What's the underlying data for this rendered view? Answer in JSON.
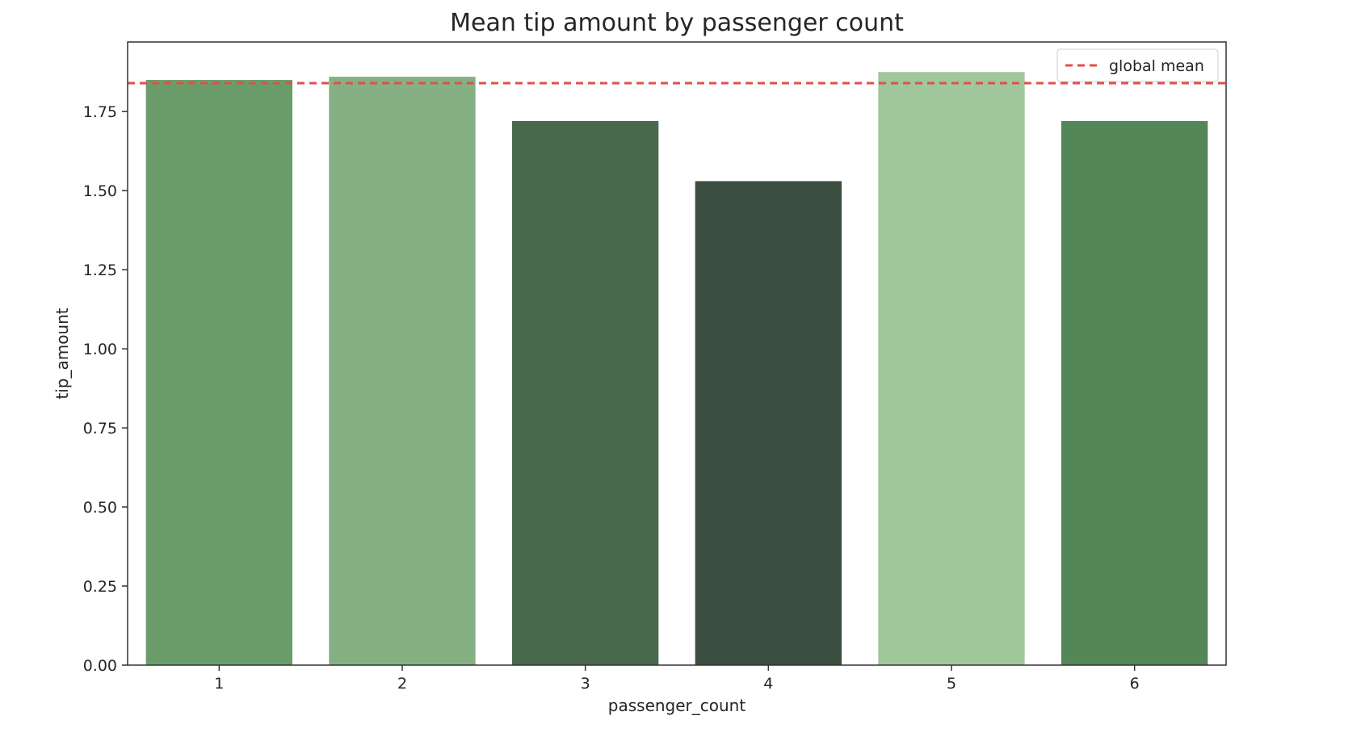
{
  "chart_data": {
    "type": "bar",
    "title": "Mean tip amount by passenger count",
    "xlabel": "passenger_count",
    "ylabel": "tip_amount",
    "categories": [
      "1",
      "2",
      "3",
      "4",
      "5",
      "6"
    ],
    "values": [
      1.85,
      1.86,
      1.72,
      1.53,
      1.875,
      1.72
    ],
    "colors": [
      "#6a9c6a",
      "#84b084",
      "#48694e",
      "#3c4e40",
      "#a0c69c",
      "#548658"
    ],
    "ylim": [
      0,
      1.97
    ],
    "yticks": [
      0.0,
      0.25,
      0.5,
      0.75,
      1.0,
      1.25,
      1.5,
      1.75
    ],
    "ytick_labels": [
      "0.00",
      "0.25",
      "0.50",
      "0.75",
      "1.00",
      "1.25",
      "1.50",
      "1.75"
    ],
    "reference_line": {
      "label": "global mean",
      "value": 1.84,
      "color": "#e05048",
      "style": "dashed"
    },
    "legend": {
      "position": "top-right",
      "entries": [
        "global mean"
      ]
    },
    "grid": false
  }
}
